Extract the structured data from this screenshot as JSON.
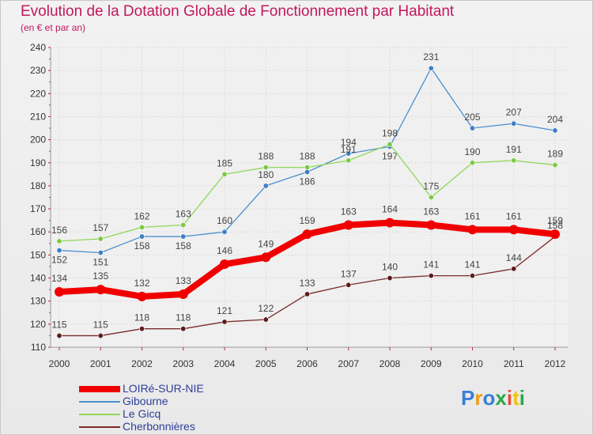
{
  "header": {
    "title": "Evolution de la Dotation Globale de Fonctionnement par Habitant",
    "subtitle": "(en € et par an)"
  },
  "logo": {
    "text": "Proxiti",
    "colors": [
      "#3a7fd5",
      "#f39c12",
      "#3a7fd5",
      "#2aa84a",
      "#e74c3c",
      "#f1c40f",
      "#2aa84a"
    ]
  },
  "chart_data": {
    "type": "line",
    "title": "Evolution de la Dotation Globale de Fonctionnement par Habitant",
    "subtitle": "(en € et par an)",
    "xlabel": "",
    "ylabel": "",
    "ylim": [
      110,
      240
    ],
    "yticks": [
      110,
      120,
      130,
      140,
      150,
      160,
      170,
      180,
      190,
      200,
      210,
      220,
      230,
      240
    ],
    "categories": [
      "2000",
      "2001",
      "2002",
      "2003",
      "2004",
      "2005",
      "2006",
      "2007",
      "2008",
      "2009",
      "2010",
      "2011",
      "2012"
    ],
    "grid": true,
    "legend_position": "bottom-left",
    "series": [
      {
        "name": "Gibourne",
        "color": "#4a8fd0",
        "marker": "#3d7fc4",
        "values": [
          152,
          151,
          158,
          158,
          160,
          180,
          186,
          194,
          197,
          231,
          205,
          207,
          204
        ],
        "labels": [
          "152",
          "151",
          "158",
          "158",
          "160",
          "180",
          "186",
          "194",
          "197",
          "231",
          "205",
          "207",
          "204"
        ]
      },
      {
        "name": "Le Gicq",
        "color": "#8ed856",
        "marker": "#7cc943",
        "values": [
          156,
          157,
          162,
          163,
          185,
          188,
          188,
          191,
          198,
          175,
          190,
          191,
          189
        ],
        "labels": [
          "156",
          "157",
          "162",
          "163",
          "185",
          "188",
          "188",
          "191",
          "198",
          "175",
          "190",
          "191",
          "189"
        ]
      },
      {
        "name": "Cherbonnières",
        "color": "#7a2a2a",
        "marker": "#5e1a1a",
        "values": [
          115,
          115,
          118,
          118,
          121,
          122,
          133,
          137,
          140,
          141,
          141,
          144,
          158
        ],
        "labels": [
          "115",
          "115",
          "118",
          "118",
          "121",
          "122",
          "133",
          "137",
          "140",
          "141",
          "141",
          "144",
          "158"
        ]
      },
      {
        "name": "LOIRé-SUR-NIE",
        "color": "#f00000",
        "marker": "#f00000",
        "values": [
          134,
          135,
          132,
          133,
          146,
          149,
          159,
          163,
          164,
          163,
          161,
          161,
          159
        ],
        "labels": [
          "134",
          "135",
          "132",
          "133",
          "146",
          "149",
          "159",
          "163",
          "164",
          "163",
          "161",
          "161",
          "159"
        ]
      }
    ],
    "legend_order": [
      "LOIRé-SUR-NIE",
      "Gibourne",
      "Le Gicq",
      "Cherbonnières"
    ]
  }
}
